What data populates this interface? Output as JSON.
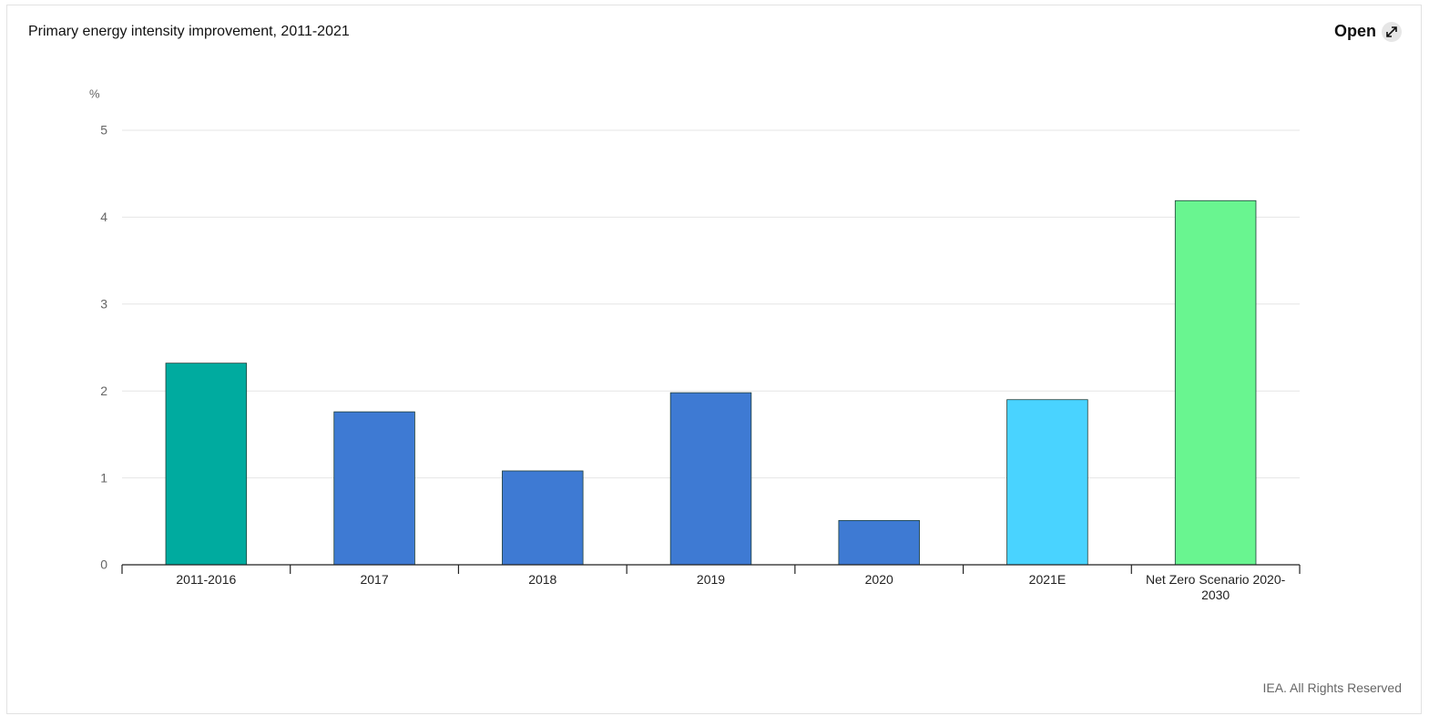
{
  "chart_data": {
    "type": "bar",
    "title": "Primary energy intensity improvement, 2011-2021",
    "y_unit": "%",
    "categories": [
      "2011-2016",
      "2017",
      "2018",
      "2019",
      "2020",
      "2021E",
      "Net Zero Scenario 2020-2030"
    ],
    "values": [
      2.32,
      1.76,
      1.08,
      1.98,
      0.51,
      1.9,
      4.19
    ],
    "colors": [
      "#00ab9f",
      "#3e7ad3",
      "#3e7ad3",
      "#3e7ad3",
      "#3e7ad3",
      "#49d3ff",
      "#69f590"
    ],
    "ylim": [
      0,
      5
    ],
    "yticks": [
      0,
      1,
      2,
      3,
      4,
      5
    ],
    "grid": true
  },
  "header": {
    "open_button": "Open"
  },
  "footer": {
    "credit": "IEA. All Rights Reserved"
  }
}
